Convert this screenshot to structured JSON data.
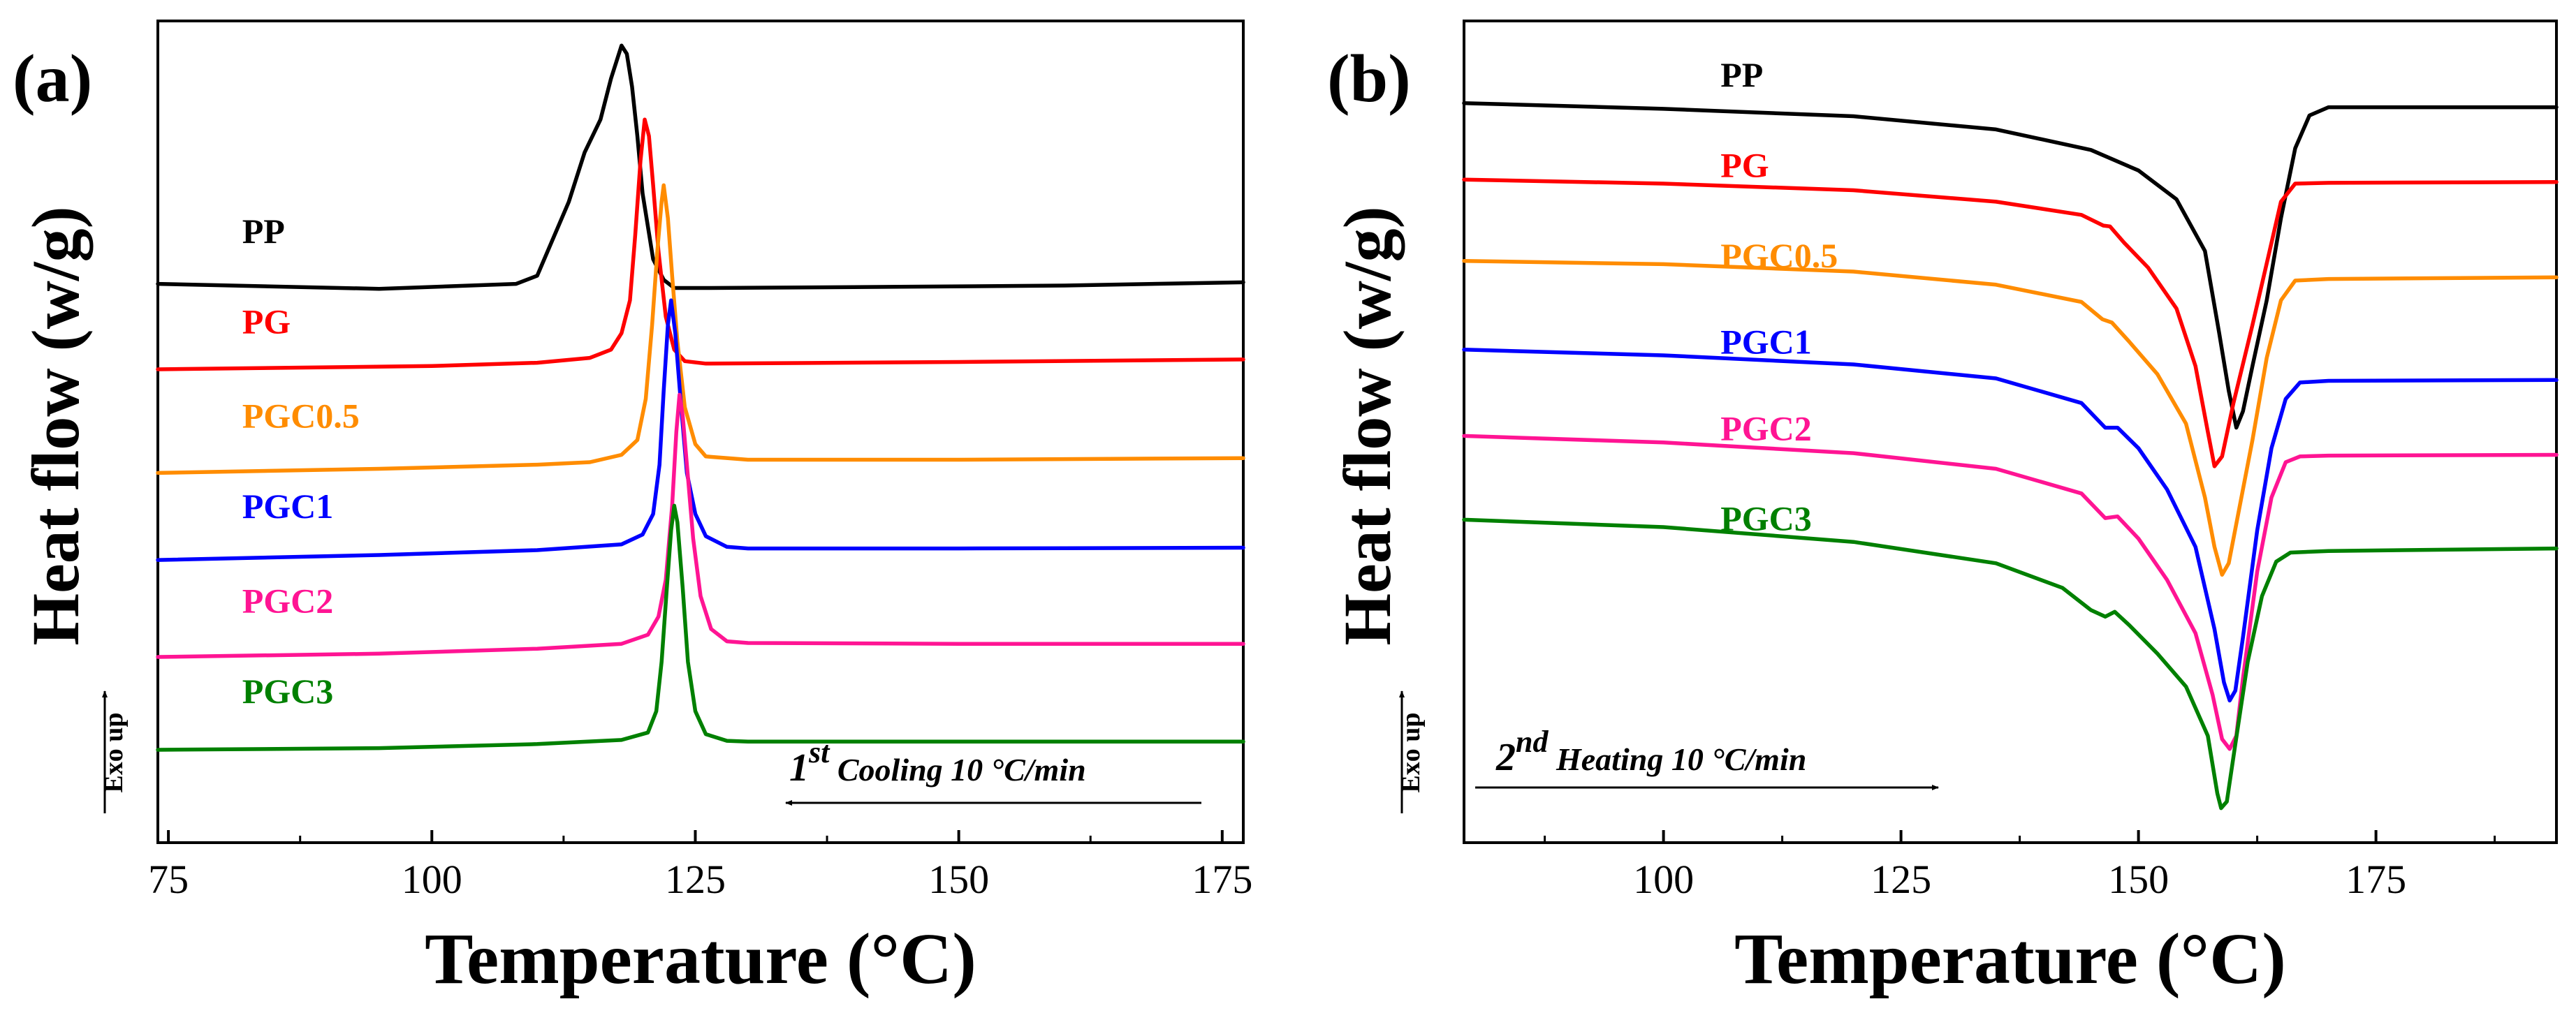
{
  "chart_data": [
    {
      "type": "line",
      "panel_label": "(a)",
      "title": "",
      "xlabel": "Temperature (°C)",
      "ylabel": "Heat flow (w/g)",
      "exo_label": "Exo up",
      "xlim": [
        74,
        177
      ],
      "xticks": [
        75,
        100,
        125,
        150,
        175
      ],
      "ylim": [
        0,
        100
      ],
      "grid": false,
      "annotation": {
        "base": "1",
        "sup": "st",
        "text": " Cooling 10 °C/min",
        "arrow": "left"
      },
      "series": [
        {
          "name": "PP",
          "color": "#000000",
          "points": [
            [
              74,
              68
            ],
            [
              95,
              67.4
            ],
            [
              108,
              68
            ],
            [
              110,
              69
            ],
            [
              111,
              72
            ],
            [
              113,
              78
            ],
            [
              114.5,
              84
            ],
            [
              116,
              88
            ],
            [
              117,
              93
            ],
            [
              118,
              97
            ],
            [
              118.5,
              96
            ],
            [
              119,
              92
            ],
            [
              119.5,
              86
            ],
            [
              120,
              79
            ],
            [
              121,
              71
            ],
            [
              122,
              68.5
            ],
            [
              123,
              67.5
            ],
            [
              126,
              67.5
            ],
            [
              140,
              67.6
            ],
            [
              160,
              67.8
            ],
            [
              177,
              68.2
            ]
          ]
        },
        {
          "name": "PG",
          "color": "#ff0000",
          "points": [
            [
              74,
              57.6
            ],
            [
              100,
              58
            ],
            [
              110,
              58.4
            ],
            [
              115,
              59
            ],
            [
              117,
              60
            ],
            [
              118,
              62
            ],
            [
              118.8,
              66
            ],
            [
              119.3,
              74
            ],
            [
              119.8,
              83
            ],
            [
              120.2,
              88
            ],
            [
              120.6,
              86
            ],
            [
              121,
              80
            ],
            [
              121.5,
              72
            ],
            [
              122.2,
              64
            ],
            [
              123,
              60
            ],
            [
              124,
              58.6
            ],
            [
              126,
              58.3
            ],
            [
              150,
              58.5
            ],
            [
              177,
              58.8
            ]
          ]
        },
        {
          "name": "PGC0.5",
          "color": "#ff8c00",
          "points": [
            [
              74,
              45
            ],
            [
              95,
              45.5
            ],
            [
              110,
              46
            ],
            [
              115,
              46.3
            ],
            [
              118,
              47.2
            ],
            [
              119.5,
              49
            ],
            [
              120.3,
              54
            ],
            [
              120.9,
              63
            ],
            [
              121.4,
              72
            ],
            [
              121.8,
              78
            ],
            [
              122,
              80
            ],
            [
              122.4,
              76
            ],
            [
              122.8,
              69
            ],
            [
              123.3,
              61
            ],
            [
              124,
              53
            ],
            [
              125,
              48.5
            ],
            [
              126,
              47
            ],
            [
              130,
              46.6
            ],
            [
              150,
              46.6
            ],
            [
              177,
              46.8
            ]
          ]
        },
        {
          "name": "PGC1",
          "color": "#0000ff",
          "points": [
            [
              74,
              34.4
            ],
            [
              95,
              35
            ],
            [
              110,
              35.6
            ],
            [
              118,
              36.3
            ],
            [
              120,
              37.5
            ],
            [
              121,
              40
            ],
            [
              121.6,
              46
            ],
            [
              122,
              55
            ],
            [
              122.4,
              63
            ],
            [
              122.7,
              66
            ],
            [
              123.1,
              62
            ],
            [
              123.6,
              54
            ],
            [
              124.2,
              45
            ],
            [
              125,
              40
            ],
            [
              126,
              37.3
            ],
            [
              128,
              36
            ],
            [
              130,
              35.8
            ],
            [
              150,
              35.8
            ],
            [
              177,
              35.9
            ]
          ]
        },
        {
          "name": "PGC2",
          "color": "#ff1493",
          "points": [
            [
              74,
              22.6
            ],
            [
              95,
              23
            ],
            [
              110,
              23.6
            ],
            [
              118,
              24.2
            ],
            [
              120.5,
              25.3
            ],
            [
              121.5,
              27.5
            ],
            [
              122.2,
              32
            ],
            [
              122.8,
              41
            ],
            [
              123.2,
              50
            ],
            [
              123.5,
              54.5
            ],
            [
              123.8,
              52
            ],
            [
              124.2,
              46
            ],
            [
              124.8,
              37
            ],
            [
              125.5,
              30
            ],
            [
              126.5,
              26
            ],
            [
              128,
              24.5
            ],
            [
              130,
              24.3
            ],
            [
              150,
              24.2
            ],
            [
              177,
              24.2
            ]
          ]
        },
        {
          "name": "PGC3",
          "color": "#008000",
          "points": [
            [
              74,
              11.3
            ],
            [
              95,
              11.5
            ],
            [
              110,
              12
            ],
            [
              118,
              12.5
            ],
            [
              120.5,
              13.4
            ],
            [
              121.3,
              16
            ],
            [
              121.8,
              22
            ],
            [
              122.3,
              31
            ],
            [
              122.7,
              38
            ],
            [
              123,
              41
            ],
            [
              123.3,
              39
            ],
            [
              123.8,
              31
            ],
            [
              124.3,
              22
            ],
            [
              125,
              16
            ],
            [
              126,
              13.2
            ],
            [
              128,
              12.4
            ],
            [
              130,
              12.3
            ],
            [
              150,
              12.3
            ],
            [
              177,
              12.3
            ]
          ]
        }
      ],
      "series_label_pos": [
        [
          82,
          73
        ],
        [
          82,
          62
        ],
        [
          82,
          50.5
        ],
        [
          82,
          39.5
        ],
        [
          82,
          28
        ],
        [
          82,
          17
        ]
      ]
    },
    {
      "type": "line",
      "panel_label": "(b)",
      "title": "",
      "xlabel": "Temperature (°C)",
      "ylabel": "Heat flow (w/g)",
      "exo_label": "Exo up",
      "xlim": [
        79,
        194
      ],
      "xticks": [
        100,
        125,
        150,
        175
      ],
      "ylim": [
        0,
        100
      ],
      "grid": false,
      "annotation": {
        "base": "2",
        "sup": "nd",
        "text": " Heating 10 °C/min",
        "arrow": "right"
      },
      "series": [
        {
          "name": "PP",
          "color": "#000000",
          "points": [
            [
              79,
              90
            ],
            [
              100,
              89.3
            ],
            [
              120,
              88.4
            ],
            [
              135,
              86.8
            ],
            [
              145,
              84.3
            ],
            [
              150,
              81.8
            ],
            [
              154,
              78.3
            ],
            [
              157,
              72
            ],
            [
              158.5,
              62
            ],
            [
              159.5,
              55
            ],
            [
              160.3,
              50.5
            ],
            [
              161,
              52.5
            ],
            [
              162,
              58
            ],
            [
              163.5,
              66
            ],
            [
              165,
              76
            ],
            [
              166.5,
              84.5
            ],
            [
              168,
              88.5
            ],
            [
              170,
              89.5
            ],
            [
              194,
              89.5
            ]
          ]
        },
        {
          "name": "PG",
          "color": "#ff0000",
          "points": [
            [
              79,
              80.7
            ],
            [
              100,
              80.2
            ],
            [
              120,
              79.4
            ],
            [
              135,
              78
            ],
            [
              144,
              76.4
            ],
            [
              146.3,
              75.1
            ],
            [
              147,
              75
            ],
            [
              148.5,
              73
            ],
            [
              151,
              70
            ],
            [
              154,
              65
            ],
            [
              156,
              58
            ],
            [
              157.3,
              50
            ],
            [
              158,
              45.8
            ],
            [
              158.8,
              47
            ],
            [
              160,
              53.5
            ],
            [
              162,
              63
            ],
            [
              163.8,
              72
            ],
            [
              165,
              78
            ],
            [
              166.5,
              80.2
            ],
            [
              170,
              80.3
            ],
            [
              194,
              80.4
            ]
          ]
        },
        {
          "name": "PGC0.5",
          "color": "#ff8c00",
          "points": [
            [
              79,
              70.8
            ],
            [
              100,
              70.4
            ],
            [
              120,
              69.5
            ],
            [
              135,
              67.9
            ],
            [
              144,
              65.8
            ],
            [
              146.2,
              63.7
            ],
            [
              147.2,
              63.3
            ],
            [
              149,
              61
            ],
            [
              152,
              57
            ],
            [
              155,
              51
            ],
            [
              157,
              42
            ],
            [
              158,
              36
            ],
            [
              158.8,
              32.6
            ],
            [
              159.5,
              34
            ],
            [
              160.5,
              40
            ],
            [
              162,
              49
            ],
            [
              163.5,
              59
            ],
            [
              165,
              66
            ],
            [
              166.5,
              68.4
            ],
            [
              170,
              68.6
            ],
            [
              194,
              68.8
            ]
          ]
        },
        {
          "name": "PGC1",
          "color": "#0000ff",
          "points": [
            [
              79,
              60
            ],
            [
              100,
              59.3
            ],
            [
              120,
              58.2
            ],
            [
              135,
              56.5
            ],
            [
              144,
              53.5
            ],
            [
              146.5,
              50.5
            ],
            [
              147.8,
              50.5
            ],
            [
              150,
              48
            ],
            [
              153,
              43
            ],
            [
              156,
              36
            ],
            [
              158,
              26
            ],
            [
              159,
              19.5
            ],
            [
              159.6,
              17.3
            ],
            [
              160.2,
              18.5
            ],
            [
              161,
              25
            ],
            [
              162.5,
              38
            ],
            [
              164,
              48
            ],
            [
              165.5,
              54
            ],
            [
              167,
              56
            ],
            [
              170,
              56.2
            ],
            [
              194,
              56.3
            ]
          ]
        },
        {
          "name": "PGC2",
          "color": "#ff1493",
          "points": [
            [
              79,
              49.5
            ],
            [
              100,
              48.7
            ],
            [
              120,
              47.4
            ],
            [
              135,
              45.5
            ],
            [
              144,
              42.5
            ],
            [
              146.5,
              39.5
            ],
            [
              147.8,
              39.7
            ],
            [
              150,
              37
            ],
            [
              153,
              32
            ],
            [
              156,
              25.5
            ],
            [
              157.8,
              18
            ],
            [
              158.8,
              12.6
            ],
            [
              159.6,
              11.4
            ],
            [
              160.3,
              13
            ],
            [
              161,
              20
            ],
            [
              162.5,
              33
            ],
            [
              164,
              42
            ],
            [
              165.5,
              46.3
            ],
            [
              167,
              47
            ],
            [
              170,
              47.1
            ],
            [
              194,
              47.2
            ]
          ]
        },
        {
          "name": "PGC3",
          "color": "#008000",
          "points": [
            [
              79,
              39.3
            ],
            [
              100,
              38.4
            ],
            [
              120,
              36.6
            ],
            [
              135,
              34
            ],
            [
              142,
              31
            ],
            [
              145,
              28.3
            ],
            [
              146.5,
              27.5
            ],
            [
              147.5,
              28.1
            ],
            [
              149,
              26.5
            ],
            [
              152,
              23
            ],
            [
              155,
              19
            ],
            [
              157.3,
              13
            ],
            [
              158.3,
              6
            ],
            [
              158.7,
              4.2
            ],
            [
              159.3,
              5
            ],
            [
              160.2,
              12
            ],
            [
              161.5,
              22
            ],
            [
              163,
              30
            ],
            [
              164.5,
              34.2
            ],
            [
              166,
              35.3
            ],
            [
              170,
              35.5
            ],
            [
              194,
              35.8
            ]
          ]
        }
      ],
      "series_label_pos": [
        [
          106,
          92
        ],
        [
          106,
          81
        ],
        [
          106,
          70
        ],
        [
          106,
          59.5
        ],
        [
          106,
          49
        ],
        [
          106,
          38
        ]
      ]
    }
  ]
}
